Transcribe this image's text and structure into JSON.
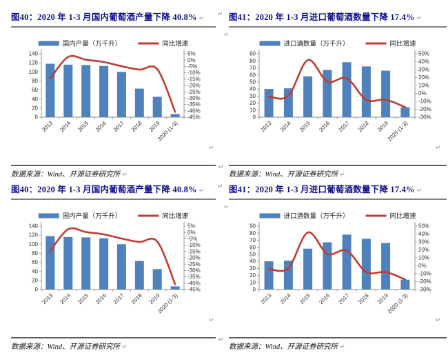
{
  "marks": {
    "return_char": "↵"
  },
  "figures": [
    {
      "title": "图40：2020 年 1-3 月国内葡萄酒产量下降 40.8%",
      "source": "数据来源：Wind、开源证券研究所",
      "chart_index": 0
    },
    {
      "title": "图41：2020 年 1-3 月进口葡萄酒数量下降 17.4%",
      "source": "数据来源：Wind、开源证券研究所",
      "chart_index": 1
    },
    {
      "title": "图40：2020 年 1-3 月国内葡萄酒产量下降 40.8%",
      "source": "数据来源：Wind、开源证券研究所",
      "chart_index": 0
    },
    {
      "title": "图41：2020 年 1-3 月进口葡萄酒数量下降 17.4%",
      "source": "数据来源：Wind、开源证券研究所",
      "chart_index": 1
    }
  ],
  "chart_data": [
    {
      "type": "bar",
      "title": "2020 年 1-3 月国内葡萄酒产量下降 40.8%",
      "categories": [
        "2013",
        "2014",
        "2015",
        "2016",
        "2017",
        "2018",
        "2019",
        "2020 (1-3)"
      ],
      "series": [
        {
          "name": "国内产量（万千升）",
          "type": "bar",
          "axis": "left",
          "values": [
            118,
            116,
            115,
            113,
            100,
            63,
            45,
            7
          ]
        },
        {
          "name": "同比增速",
          "type": "line",
          "axis": "right",
          "values": [
            -14.6,
            2.5,
            0.3,
            -1.5,
            -4.8,
            -7.5,
            -7.2,
            -40.8
          ]
        }
      ],
      "left_axis": {
        "min": 0,
        "max": 140,
        "step": 20,
        "suffix": ""
      },
      "right_axis": {
        "min": -45,
        "max": 5,
        "step": 5,
        "suffix": "%"
      },
      "legend_position": "top",
      "grid": false,
      "bar_color": "#4F81BD",
      "line_color": "#C23B33",
      "axis_text_color": "#2b2b2b",
      "axis_line_color": "#8c8c8c"
    },
    {
      "type": "bar",
      "title": "2020 年 1-3 月进口葡萄酒数量下降 17.4%",
      "categories": [
        "2013",
        "2014",
        "2015",
        "2016",
        "2017",
        "2018",
        "2019",
        "2020 (1-3)"
      ],
      "series": [
        {
          "name": "进口酒数量（万千升）",
          "type": "bar",
          "axis": "left",
          "values": [
            40,
            41,
            58,
            67,
            78,
            72,
            66,
            14
          ]
        },
        {
          "name": "同比增速",
          "type": "line",
          "axis": "right",
          "values": [
            -4,
            -3,
            42,
            15,
            19,
            -8,
            -8,
            -17.4
          ]
        }
      ],
      "left_axis": {
        "min": 0,
        "max": 90,
        "step": 10,
        "suffix": ""
      },
      "right_axis": {
        "min": -30,
        "max": 50,
        "step": 10,
        "suffix": "%"
      },
      "legend_position": "top",
      "grid": false,
      "bar_color": "#4F81BD",
      "line_color": "#C23B33",
      "axis_text_color": "#2b2b2b",
      "axis_line_color": "#8c8c8c"
    }
  ]
}
